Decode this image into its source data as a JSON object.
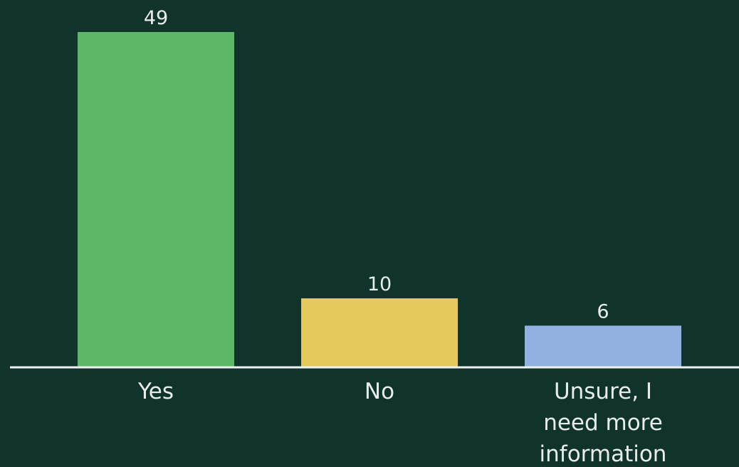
{
  "colors": {
    "background": "#10332c",
    "baseline": "#eef2ee",
    "text": "#e8ede9"
  },
  "chart_data": {
    "type": "bar",
    "title": "",
    "xlabel": "",
    "ylabel": "",
    "categories": [
      "Yes",
      "No",
      "Unsure, I need more information"
    ],
    "category_label_lines": [
      [
        "Yes"
      ],
      [
        "No"
      ],
      [
        "Unsure, I",
        "need more",
        "information"
      ]
    ],
    "values": [
      49,
      10,
      6
    ],
    "value_labels": [
      "49",
      "10",
      "6"
    ],
    "bar_colors": [
      "#5cb866",
      "#e6c85c",
      "#92b1e1"
    ],
    "ylim": [
      0,
      50
    ],
    "grid": false,
    "legend": "none"
  }
}
